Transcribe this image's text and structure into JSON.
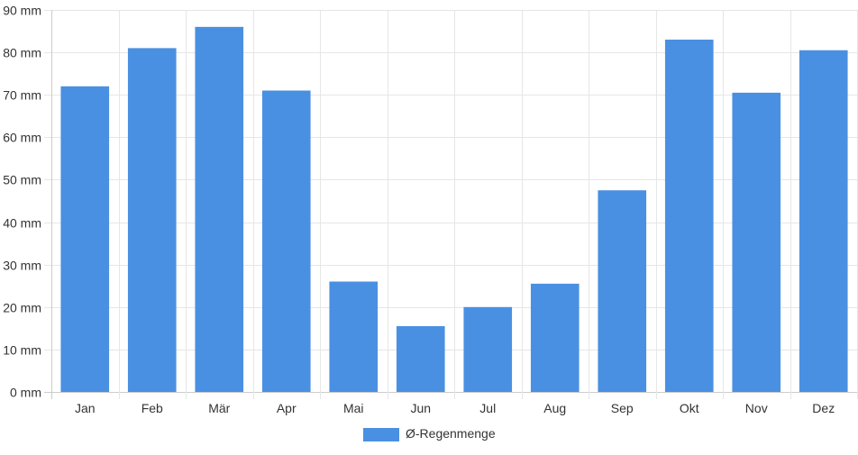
{
  "chart_data": {
    "type": "bar",
    "categories": [
      "Jan",
      "Feb",
      "Mär",
      "Apr",
      "Mai",
      "Jun",
      "Jul",
      "Aug",
      "Sep",
      "Okt",
      "Nov",
      "Dez"
    ],
    "series": [
      {
        "name": "Ø-Regenmenge",
        "values": [
          72,
          81,
          86,
          71,
          26,
          15.5,
          20,
          25.5,
          47.5,
          83,
          70.5,
          80.5
        ],
        "color": "#4a90e2"
      }
    ],
    "ylim": [
      0,
      90
    ],
    "yticks": [
      0,
      10,
      20,
      30,
      40,
      50,
      60,
      70,
      80,
      90
    ],
    "ytick_labels": [
      "0 mm",
      "10 mm",
      "20 mm",
      "30 mm",
      "40 mm",
      "50 mm",
      "60 mm",
      "70 mm",
      "80 mm",
      "90 mm"
    ],
    "grid": true,
    "legend_position": "bottom-center",
    "colors": {
      "grid": "#e6e6e6",
      "axis": "#cccccc",
      "text": "#333333"
    }
  }
}
